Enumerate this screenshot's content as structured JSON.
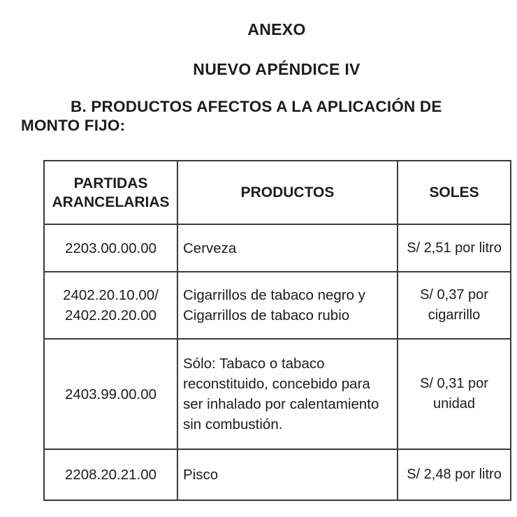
{
  "page": {
    "title": "ANEXO",
    "subtitle": "NUEVO APÉNDICE IV",
    "section_heading": {
      "line1": "B. PRODUCTOS AFECTOS A LA APLICACIÓN DE",
      "line2": "MONTO FIJO:"
    }
  },
  "table": {
    "columns": [
      "PARTIDAS ARANCELARIAS",
      "PRODUCTOS",
      "SOLES"
    ],
    "rows": [
      {
        "partidas": "2203.00.00.00",
        "producto": "Cerveza",
        "soles": "S/ 2,51 por litro"
      },
      {
        "partidas": "2402.20.10.00/ 2402.20.20.00",
        "producto": "Cigarrillos de tabaco negro y Cigarrillos de tabaco rubio",
        "soles": "S/ 0,37 por cigarrillo"
      },
      {
        "partidas": "2403.99.00.00",
        "producto": "Sólo: Tabaco o tabaco reconstituido, concebido para ser inhalado por calentamiento sin combustión.",
        "soles": "S/ 0,31 por unidad"
      },
      {
        "partidas": "2208.20.21.00",
        "producto": "Pisco",
        "soles": "S/ 2,48 por litro"
      }
    ]
  },
  "colors": {
    "text": "#1d1d1f",
    "border": "#3a3a3c",
    "background": "#ffffff"
  }
}
